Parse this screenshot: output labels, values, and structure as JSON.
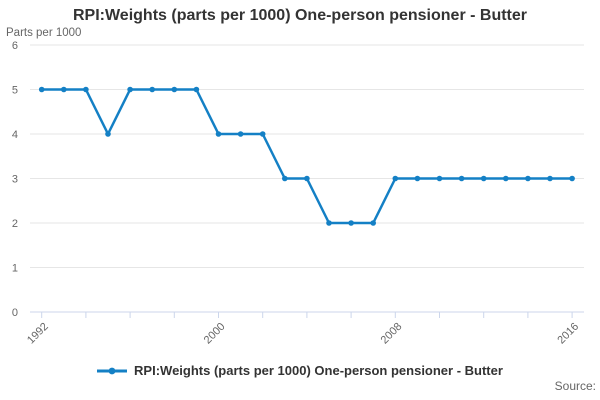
{
  "title": "RPI:Weights (parts per 1000) One-person pensioner - Butter",
  "y_axis_title": "Parts per 1000",
  "source_label": "Source:",
  "legend": {
    "label": "RPI:Weights (parts per 1000) One-person pensioner - Butter"
  },
  "colors": {
    "line": "#1480c5",
    "grid": "#e6e6e6",
    "axis": "#ccd6eb",
    "tick_label": "#666666",
    "title_text": "#333333"
  },
  "chart_data": {
    "type": "line",
    "title": "RPI:Weights (parts per 1000) One-person pensioner - Butter",
    "xlabel": "",
    "ylabel": "Parts per 1000",
    "x": [
      1992,
      1993,
      1994,
      1995,
      1996,
      1997,
      1998,
      1999,
      2000,
      2001,
      2002,
      2003,
      2004,
      2005,
      2006,
      2007,
      2008,
      2009,
      2010,
      2011,
      2012,
      2013,
      2014,
      2015,
      2016
    ],
    "series": [
      {
        "name": "RPI:Weights (parts per 1000) One-person pensioner - Butter",
        "values": [
          5,
          5,
          5,
          4,
          5,
          5,
          5,
          5,
          4,
          4,
          4,
          3,
          3,
          2,
          2,
          2,
          3,
          3,
          3,
          3,
          3,
          3,
          3,
          3,
          3
        ]
      }
    ],
    "ylim": [
      0,
      6
    ],
    "yticks": [
      0,
      1,
      2,
      3,
      4,
      5,
      6
    ],
    "xticks": [
      1992,
      1994,
      1996,
      1998,
      2000,
      2002,
      2004,
      2006,
      2008,
      2010,
      2012,
      2014,
      2016
    ],
    "xtick_labels_shown": [
      "1992",
      "2000",
      "2008",
      "2016"
    ],
    "grid": "horizontal",
    "legend_position": "bottom"
  }
}
